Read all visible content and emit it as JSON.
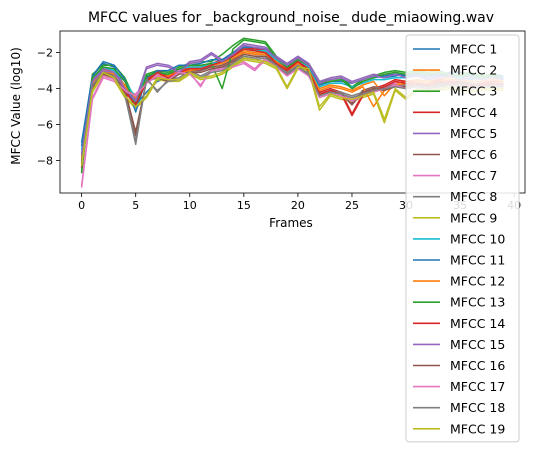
{
  "chart_data": {
    "type": "line",
    "title": "MFCC values for _background_noise_ dude_miaowing.wav",
    "xlabel": "Frames",
    "ylabel": "MFCC Value (log10)",
    "xlim": [
      -2,
      41
    ],
    "ylim": [
      -9.8,
      -0.8
    ],
    "xticks": [
      0,
      5,
      10,
      15,
      20,
      25,
      30,
      35,
      40
    ],
    "yticks": [
      -8,
      -6,
      -4,
      -2
    ],
    "grid": false,
    "legend_position": "right (overlapping plot, extending below)",
    "x": [
      0,
      1,
      2,
      3,
      4,
      5,
      6,
      7,
      8,
      9,
      10,
      11,
      12,
      13,
      14,
      15,
      16,
      17,
      18,
      19,
      20,
      21,
      22,
      23,
      24,
      25,
      26,
      27,
      28,
      29,
      30,
      31,
      32,
      33,
      34,
      35,
      36,
      37,
      38,
      39
    ],
    "series": [
      {
        "name": "MFCC 1",
        "color": "#1f77b4",
        "values": [
          -7.0,
          -3.3,
          -2.6,
          -2.8,
          -3.9,
          -4.9,
          -4.2,
          -3.6,
          -3.4,
          -3.1,
          -3.0,
          -3.0,
          -2.7,
          -2.6,
          -2.2,
          -1.8,
          -1.8,
          -1.8,
          -2.3,
          -2.8,
          -2.4,
          -2.8,
          -3.8,
          -3.6,
          -3.6,
          -3.7,
          -3.5,
          -3.3,
          -3.4,
          -3.3,
          -3.2,
          -3.1,
          -3.2,
          -3.3,
          -3.1,
          -3.1,
          -3.2,
          -3.3,
          -3.2,
          -3.3
        ]
      },
      {
        "name": "MFCC 2",
        "color": "#ff7f0e",
        "values": [
          -7.8,
          -3.6,
          -2.9,
          -3.1,
          -3.8,
          -4.4,
          -3.6,
          -3.3,
          -3.2,
          -3.0,
          -2.9,
          -2.8,
          -2.6,
          -2.5,
          -2.2,
          -1.9,
          -2.0,
          -2.0,
          -2.4,
          -2.9,
          -2.5,
          -2.9,
          -4.0,
          -3.8,
          -3.9,
          -4.1,
          -3.8,
          -3.6,
          -4.4,
          -3.7,
          -3.6,
          -3.5,
          -3.6,
          -3.5,
          -3.4,
          -3.3,
          -3.5,
          -3.4,
          -3.4,
          -3.5
        ]
      },
      {
        "name": "MFCC 3",
        "color": "#2ca02c",
        "values": [
          -8.6,
          -3.2,
          -2.7,
          -2.7,
          -3.4,
          -4.7,
          -3.2,
          -3.0,
          -3.1,
          -2.8,
          -2.6,
          -2.5,
          -2.5,
          -2.1,
          -1.6,
          -1.2,
          -1.3,
          -1.4,
          -2.2,
          -2.7,
          -2.3,
          -2.6,
          -3.6,
          -3.5,
          -3.4,
          -3.9,
          -3.5,
          -3.3,
          -3.1,
          -3.0,
          -3.1,
          -3.0,
          -3.1,
          -3.0,
          -3.2,
          -3.2,
          -3.1,
          -3.3,
          -3.2,
          -3.4
        ]
      },
      {
        "name": "MFCC 4",
        "color": "#d62728",
        "values": [
          -8.1,
          -3.9,
          -3.0,
          -3.3,
          -4.1,
          -4.8,
          -3.5,
          -3.0,
          -3.3,
          -3.0,
          -2.8,
          -2.8,
          -2.6,
          -2.4,
          -2.1,
          -1.7,
          -1.8,
          -1.9,
          -2.5,
          -2.9,
          -2.4,
          -2.9,
          -4.2,
          -4.0,
          -4.2,
          -5.4,
          -4.3,
          -4.0,
          -3.8,
          -3.5,
          -3.6,
          -3.6,
          -3.7,
          -3.5,
          -3.6,
          -3.6,
          -3.8,
          -3.7,
          -3.6,
          -3.6
        ]
      },
      {
        "name": "MFCC 5",
        "color": "#9467bd",
        "values": [
          -7.6,
          -3.5,
          -2.9,
          -3.0,
          -3.9,
          -4.6,
          -2.8,
          -2.6,
          -2.7,
          -3.0,
          -2.5,
          -2.4,
          -2.0,
          -2.4,
          -2.0,
          -1.5,
          -1.6,
          -1.7,
          -2.2,
          -2.6,
          -2.2,
          -2.6,
          -3.6,
          -3.4,
          -3.3,
          -3.6,
          -3.4,
          -3.2,
          -3.3,
          -3.1,
          -3.3,
          -3.2,
          -3.4,
          -3.3,
          -3.2,
          -3.4,
          -3.3,
          -3.4,
          -3.3,
          -3.4
        ]
      },
      {
        "name": "MFCC 6",
        "color": "#8c564b",
        "values": [
          -8.3,
          -3.8,
          -3.1,
          -3.3,
          -4.0,
          -6.6,
          -3.5,
          -3.3,
          -3.5,
          -3.1,
          -3.0,
          -3.0,
          -2.8,
          -2.7,
          -2.4,
          -2.0,
          -2.1,
          -2.1,
          -2.6,
          -3.1,
          -2.7,
          -3.1,
          -4.3,
          -4.1,
          -4.2,
          -4.8,
          -4.1,
          -3.9,
          -4.0,
          -3.8,
          -3.8,
          -3.7,
          -3.8,
          -3.7,
          -3.7,
          -3.6,
          -3.7,
          -3.8,
          -3.7,
          -3.7
        ]
      },
      {
        "name": "MFCC 7",
        "color": "#e377c2",
        "values": [
          -9.5,
          -4.6,
          -3.4,
          -3.6,
          -4.2,
          -4.3,
          -3.6,
          -3.2,
          -3.4,
          -3.0,
          -3.1,
          -3.9,
          -2.9,
          -2.8,
          -2.7,
          -2.5,
          -2.9,
          -2.3,
          -2.7,
          -3.2,
          -2.8,
          -3.2,
          -4.4,
          -4.2,
          -4.3,
          -4.6,
          -4.3,
          -4.1,
          -3.9,
          -3.7,
          -3.9,
          -3.8,
          -3.9,
          -3.8,
          -3.7,
          -3.8,
          -3.9,
          -3.8,
          -3.8,
          -3.8
        ]
      },
      {
        "name": "MFCC 8",
        "color": "#7f7f7f",
        "values": [
          -8.0,
          -3.7,
          -3.0,
          -3.2,
          -4.3,
          -7.1,
          -3.4,
          -4.2,
          -3.5,
          -3.4,
          -3.0,
          -3.3,
          -3.0,
          -2.9,
          -2.6,
          -2.2,
          -2.3,
          -2.2,
          -2.6,
          -3.1,
          -2.7,
          -3.1,
          -4.3,
          -4.1,
          -4.2,
          -4.4,
          -4.2,
          -4.0,
          -3.9,
          -3.8,
          -3.9,
          -3.8,
          -3.9,
          -3.8,
          -3.7,
          -3.8,
          -3.9,
          -3.8,
          -3.8,
          -3.8
        ]
      },
      {
        "name": "MFCC 9",
        "color": "#bcbd22",
        "values": [
          -8.4,
          -4.2,
          -3.2,
          -3.5,
          -4.5,
          -5.1,
          -4.5,
          -3.5,
          -3.6,
          -3.6,
          -3.2,
          -3.5,
          -3.4,
          -3.2,
          -2.8,
          -2.4,
          -2.5,
          -2.6,
          -2.9,
          -4.0,
          -2.9,
          -3.0,
          -5.2,
          -4.4,
          -4.6,
          -4.7,
          -4.5,
          -4.3,
          -5.9,
          -4.1,
          -4.6,
          -4.1,
          -4.2,
          -4.1,
          -4.0,
          -4.1,
          -4.2,
          -4.1,
          -4.1,
          -4.1
        ]
      },
      {
        "name": "MFCC 10",
        "color": "#17becf",
        "values": [
          -7.4,
          -3.4,
          -2.8,
          -3.0,
          -3.6,
          -4.5,
          -3.3,
          -3.1,
          -3.2,
          -2.9,
          -2.8,
          -2.8,
          -2.6,
          -2.5,
          -2.2,
          -1.8,
          -1.9,
          -1.9,
          -2.4,
          -2.8,
          -2.4,
          -2.8,
          -3.9,
          -3.7,
          -3.7,
          -3.9,
          -3.7,
          -3.5,
          -3.5,
          -3.4,
          -3.4,
          -3.3,
          -3.5,
          -3.4,
          -3.3,
          -3.4,
          -3.5,
          -3.4,
          -3.4,
          -3.5
        ]
      },
      {
        "name": "MFCC 11",
        "color": "#1f77b4",
        "values": [
          -7.2,
          -3.3,
          -2.5,
          -2.7,
          -3.5,
          -5.3,
          -3.4,
          -3.0,
          -3.0,
          -2.7,
          -2.7,
          -2.6,
          -2.4,
          -2.4,
          -2.0,
          -1.7,
          -1.7,
          -1.8,
          -2.3,
          -2.7,
          -2.3,
          -2.7,
          -3.8,
          -3.6,
          -3.5,
          -4.0,
          -3.6,
          -3.4,
          -3.3,
          -3.2,
          -3.3,
          -3.2,
          -3.3,
          -3.2,
          -3.3,
          -3.3,
          -3.3,
          -3.4,
          -3.3,
          -3.4
        ]
      },
      {
        "name": "MFCC 12",
        "color": "#ff7f0e",
        "values": [
          -7.9,
          -3.7,
          -3.0,
          -3.2,
          -3.9,
          -4.5,
          -3.6,
          -3.3,
          -3.3,
          -3.1,
          -3.0,
          -2.9,
          -2.7,
          -2.6,
          -2.3,
          -2.0,
          -2.1,
          -2.1,
          -2.5,
          -3.0,
          -2.6,
          -3.0,
          -4.1,
          -3.9,
          -4.0,
          -4.2,
          -3.9,
          -5.0,
          -4.1,
          -3.8,
          -3.7,
          -3.6,
          -3.7,
          -3.6,
          -3.5,
          -3.5,
          -3.6,
          -3.6,
          -3.5,
          -3.6
        ]
      },
      {
        "name": "MFCC 13",
        "color": "#2ca02c",
        "values": [
          -8.7,
          -3.4,
          -2.8,
          -2.9,
          -3.6,
          -4.9,
          -3.3,
          -3.1,
          -3.2,
          -2.9,
          -2.7,
          -2.7,
          -2.6,
          -4.0,
          -1.8,
          -1.3,
          -1.4,
          -1.5,
          -2.3,
          -2.8,
          -2.4,
          -2.7,
          -3.7,
          -3.6,
          -3.5,
          -4.0,
          -3.6,
          -3.4,
          -3.2,
          -3.1,
          -3.2,
          -3.1,
          -3.2,
          -3.1,
          -3.3,
          -3.3,
          -3.2,
          -3.4,
          -3.3,
          -3.5
        ]
      },
      {
        "name": "MFCC 14",
        "color": "#d62728",
        "values": [
          -8.2,
          -4.0,
          -3.1,
          -3.4,
          -4.2,
          -4.9,
          -3.6,
          -3.1,
          -3.4,
          -3.1,
          -2.9,
          -2.9,
          -2.7,
          -2.5,
          -2.2,
          -1.8,
          -1.9,
          -2.0,
          -2.6,
          -3.0,
          -2.5,
          -3.0,
          -4.3,
          -4.1,
          -4.3,
          -5.5,
          -4.4,
          -4.1,
          -3.9,
          -3.6,
          -3.7,
          -3.7,
          -3.8,
          -3.6,
          -3.7,
          -3.7,
          -3.9,
          -3.8,
          -3.7,
          -3.7
        ]
      },
      {
        "name": "MFCC 15",
        "color": "#9467bd",
        "values": [
          -7.7,
          -3.6,
          -3.0,
          -3.1,
          -4.0,
          -4.7,
          -2.9,
          -2.7,
          -2.8,
          -3.1,
          -2.6,
          -2.5,
          -2.1,
          -2.5,
          -2.1,
          -1.6,
          -1.7,
          -1.8,
          -2.3,
          -2.7,
          -2.3,
          -2.7,
          -3.7,
          -3.5,
          -3.4,
          -3.7,
          -3.5,
          -3.3,
          -3.4,
          -3.2,
          -3.4,
          -3.3,
          -3.5,
          -3.4,
          -3.3,
          -3.5,
          -3.4,
          -3.5,
          -3.4,
          -3.5
        ]
      },
      {
        "name": "MFCC 16",
        "color": "#8c564b",
        "values": [
          -8.4,
          -3.9,
          -3.2,
          -3.4,
          -4.1,
          -6.4,
          -3.6,
          -3.4,
          -3.6,
          -3.2,
          -3.1,
          -3.1,
          -2.9,
          -2.8,
          -2.5,
          -2.1,
          -2.2,
          -2.2,
          -2.7,
          -3.2,
          -2.8,
          -3.2,
          -4.4,
          -4.2,
          -4.3,
          -4.9,
          -4.2,
          -4.0,
          -4.1,
          -3.9,
          -3.9,
          -3.8,
          -3.9,
          -3.8,
          -3.8,
          -3.7,
          -3.8,
          -3.9,
          -3.8,
          -3.8
        ]
      },
      {
        "name": "MFCC 17",
        "color": "#e377c2",
        "values": [
          -9.4,
          -4.5,
          -3.3,
          -3.5,
          -4.1,
          -4.4,
          -3.7,
          -3.3,
          -3.5,
          -3.1,
          -3.2,
          -3.8,
          -3.0,
          -2.9,
          -2.8,
          -2.6,
          -3.0,
          -2.4,
          -2.8,
          -3.3,
          -2.9,
          -3.3,
          -4.5,
          -4.3,
          -4.4,
          -4.7,
          -4.4,
          -4.2,
          -4.0,
          -3.8,
          -4.0,
          -3.9,
          -4.0,
          -3.9,
          -3.8,
          -3.9,
          -4.0,
          -3.9,
          -3.9,
          -3.9
        ]
      },
      {
        "name": "MFCC 18",
        "color": "#7f7f7f",
        "values": [
          -8.1,
          -3.8,
          -3.1,
          -3.3,
          -4.4,
          -6.9,
          -3.5,
          -4.1,
          -3.6,
          -3.5,
          -3.1,
          -3.4,
          -3.1,
          -3.0,
          -2.7,
          -2.3,
          -2.4,
          -2.3,
          -2.7,
          -3.2,
          -2.8,
          -3.2,
          -4.4,
          -4.2,
          -4.3,
          -4.5,
          -4.3,
          -4.1,
          -4.0,
          -3.9,
          -4.0,
          -3.9,
          -4.0,
          -3.9,
          -3.8,
          -3.9,
          -4.0,
          -3.9,
          -3.9,
          -3.9
        ]
      },
      {
        "name": "MFCC 19",
        "color": "#bcbd22",
        "values": [
          -8.3,
          -4.1,
          -3.1,
          -3.4,
          -4.4,
          -5.0,
          -4.4,
          -3.4,
          -3.5,
          -3.5,
          -3.1,
          -3.4,
          -3.3,
          -3.1,
          -2.7,
          -2.3,
          -2.4,
          -2.5,
          -2.8,
          -3.9,
          -2.8,
          -2.9,
          -5.0,
          -4.3,
          -4.5,
          -4.6,
          -4.4,
          -4.2,
          -5.7,
          -4.0,
          -4.5,
          -4.0,
          -4.1,
          -4.0,
          -3.9,
          -4.0,
          -4.1,
          -4.0,
          -4.0,
          -4.0
        ]
      }
    ]
  }
}
